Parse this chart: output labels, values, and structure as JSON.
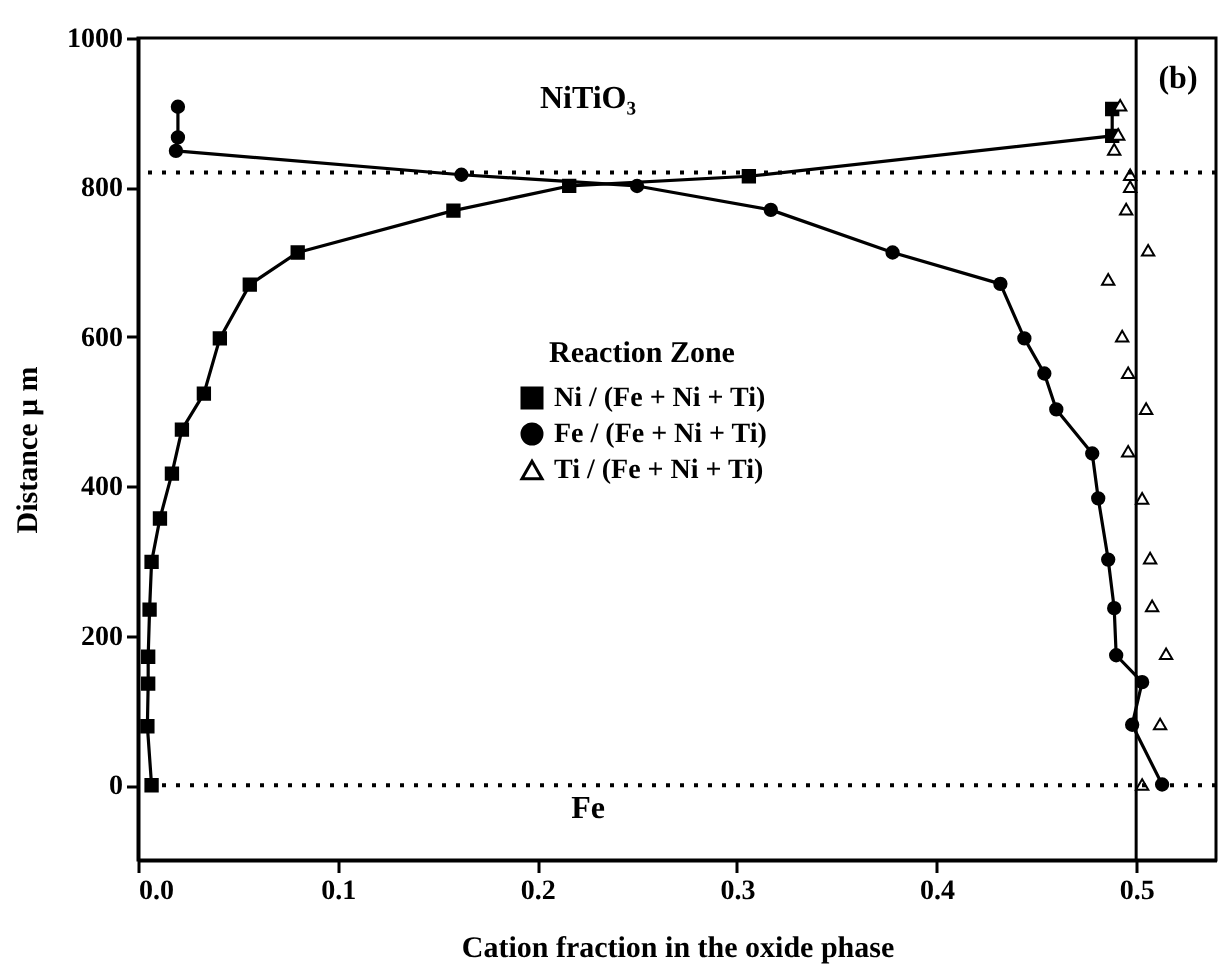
{
  "chart_data": {
    "type": "line",
    "xlabel": "Cation fraction in the oxide phase",
    "ylabel": "Distance μ m",
    "legend_title": "Reaction Zone",
    "xlim": [
      0,
      0.54
    ],
    "ylim": [
      -100,
      1000
    ],
    "xticks": [
      {
        "value": 0,
        "label": "0.0"
      },
      0.1,
      0.2,
      0.3,
      0.4,
      0.5
    ],
    "yticks": [
      0,
      200,
      400,
      600,
      800,
      1000
    ],
    "grid": false,
    "legend": "center",
    "series": [
      {
        "name": "Ni / (Fe + Ni + Ti)",
        "color": "#000000",
        "marker": "square",
        "line_style": "solid",
        "x": [
          0.0068,
          0.0047,
          0.0051,
          0.0051,
          0.0058,
          0.0068,
          0.011,
          0.017,
          0.022,
          0.033,
          0.041,
          0.056,
          0.08,
          0.158,
          0.216,
          0.306,
          0.488,
          0.488
        ],
        "values": [
          0,
          79,
          136,
          172,
          235,
          299,
          357,
          417,
          476,
          524,
          598,
          670,
          713,
          769,
          802,
          815,
          869,
          905
        ]
      },
      {
        "name": "Fe / (Fe + Ni + Ti)",
        "color": "#000000",
        "marker": "circle",
        "line_style": "solid",
        "x": [
          0.02,
          0.02,
          0.019,
          0.162,
          0.25,
          0.317,
          0.378,
          0.432,
          0.444,
          0.454,
          0.46,
          0.478,
          0.481,
          0.486,
          0.489,
          0.49,
          0.503,
          0.498,
          0.513
        ],
        "values": [
          908,
          867,
          849,
          817,
          802,
          770,
          713,
          671,
          598,
          551,
          503,
          444,
          384,
          302,
          237,
          174,
          138,
          81,
          1
        ]
      },
      {
        "name": "Ti / (Fe + Ni + Ti)",
        "color": "#000000",
        "type": "scatter",
        "marker": "triangle",
        "x": [
          0.492,
          0.491,
          0.489,
          0.497,
          0.497,
          0.495,
          0.506,
          0.486,
          0.493,
          0.496,
          0.505,
          0.496,
          0.503,
          0.507,
          0.508,
          0.515,
          0.512,
          0.503
        ],
        "values": [
          910,
          871,
          851,
          817,
          801,
          771,
          716,
          677,
          601,
          552,
          504,
          447,
          384,
          304,
          240,
          176,
          82,
          1
        ]
      }
    ],
    "ref_lines": [
      {
        "axis": "y",
        "value": 820,
        "line_style": "dotted",
        "color": "#000000"
      },
      {
        "axis": "y",
        "value": 0,
        "line_style": "dotted",
        "color": "#000000"
      },
      {
        "axis": "x",
        "value": 0.5,
        "line_style": "solid",
        "color": "#000000"
      }
    ],
    "annotations": [
      "NiTiO₃",
      "Fe",
      "(b)"
    ]
  }
}
